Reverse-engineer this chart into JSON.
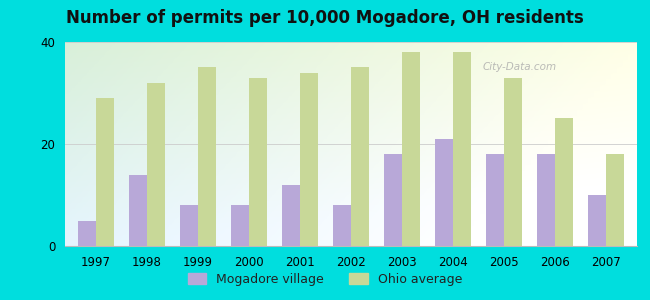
{
  "title": "Number of permits per 10,000 Mogadore, OH residents",
  "years": [
    1997,
    1998,
    1999,
    2000,
    2001,
    2002,
    2003,
    2004,
    2005,
    2006,
    2007
  ],
  "mogadore": [
    5,
    14,
    8,
    8,
    12,
    8,
    18,
    21,
    18,
    18,
    10
  ],
  "ohio_avg": [
    29,
    32,
    35,
    33,
    34,
    35,
    38,
    38,
    33,
    25,
    18
  ],
  "mogadore_color": "#b8a8d8",
  "ohio_color": "#c8d898",
  "background_color": "#00dede",
  "ylim": [
    0,
    40
  ],
  "yticks": [
    0,
    20,
    40
  ],
  "bar_width": 0.35,
  "legend_mogadore": "Mogadore village",
  "legend_ohio": "Ohio average",
  "title_fontsize": 12,
  "tick_fontsize": 8.5,
  "legend_fontsize": 9,
  "watermark": "City-Data.com"
}
